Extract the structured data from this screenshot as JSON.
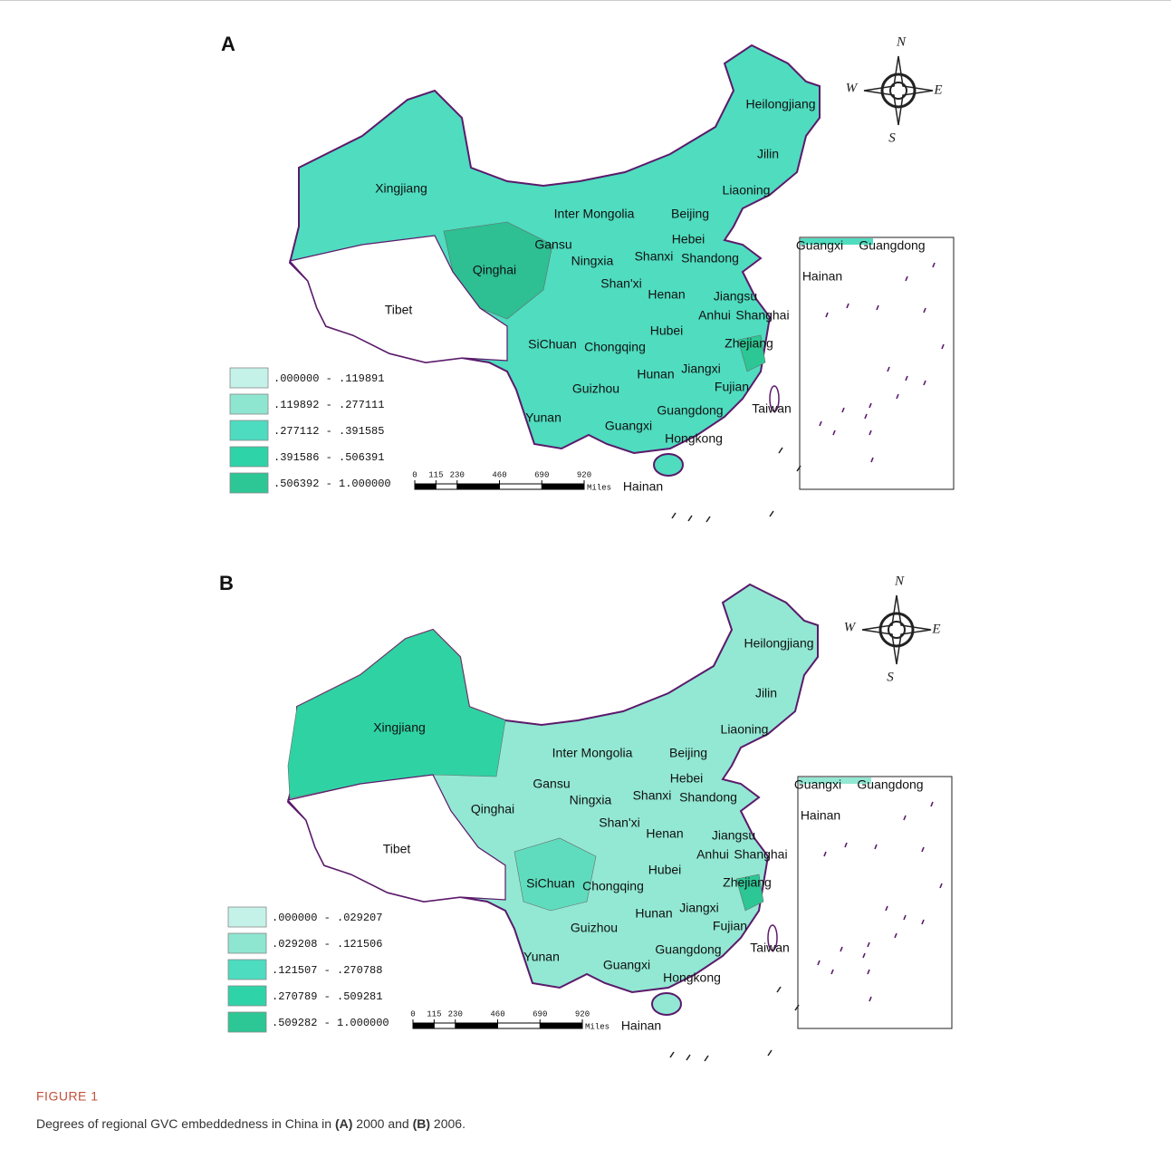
{
  "figure": {
    "label": "FIGURE 1",
    "caption": [
      {
        "text": "Degrees of regional GVC embeddedness in China in ",
        "bold": false
      },
      {
        "text": "(A)",
        "bold": true
      },
      {
        "text": " 2000 and ",
        "bold": false
      },
      {
        "text": "(B)",
        "bold": true
      },
      {
        "text": " 2006.",
        "bold": false
      }
    ]
  },
  "panels": [
    {
      "label": "A",
      "provinces": [
        "Heilongjiang",
        "Jilin",
        "Liaoning",
        "Xingjiang",
        "Inter Mongolia",
        "Beijing",
        "Hebei",
        "Gansu",
        "Ningxia",
        "Shanxi",
        "Shandong",
        "Qinghai",
        "Shan'xi",
        "Henan",
        "Jiangsu",
        "Tibet",
        "Anhui",
        "Shanghai",
        "Hubei",
        "SiChuan",
        "Chongqing",
        "Zhejiang",
        "Jiangxi",
        "Hunan",
        "Guizhou",
        "Fujian",
        "Yunan",
        "Guangdong",
        "Taiwan",
        "Guangxi",
        "Hongkong",
        "Hainan"
      ],
      "inset_labels": [
        "Guangxi",
        "Guangdong",
        "Hainan"
      ],
      "legend": [
        {
          "label": ".000000 - .119891",
          "color": "#c4f2e8"
        },
        {
          "label": ".119892 - .277111",
          "color": "#8ee6d0"
        },
        {
          "label": ".277112 - .391585",
          "color": "#4ddcc0"
        },
        {
          "label": ".391586 - .506391",
          "color": "#2fd3a8"
        },
        {
          "label": ".506392 - 1.000000",
          "color": "#2cc794"
        }
      ],
      "scale": {
        "ticks": [
          0,
          115,
          230,
          460,
          690,
          920
        ],
        "unit": "Miles"
      },
      "compass": {
        "north": "N",
        "south": "S",
        "east": "E",
        "west": "W"
      }
    },
    {
      "label": "B",
      "provinces": [
        "Heilongjiang",
        "Jilin",
        "Liaoning",
        "Xingjiang",
        "Inter Mongolia",
        "Beijing",
        "Hebei",
        "Gansu",
        "Ningxia",
        "Shanxi",
        "Shandong",
        "Qinghai",
        "Shan'xi",
        "Henan",
        "Jiangsu",
        "Tibet",
        "Anhui",
        "Shanghai",
        "Hubei",
        "SiChuan",
        "Chongqing",
        "Zhejiang",
        "Jiangxi",
        "Hunan",
        "Guizhou",
        "Fujian",
        "Yunan",
        "Guangdong",
        "Taiwan",
        "Guangxi",
        "Hongkong",
        "Hainan"
      ],
      "inset_labels": [
        "Guangxi",
        "Guangdong",
        "Hainan"
      ],
      "legend": [
        {
          "label": ".000000 - .029207",
          "color": "#c4f2e8"
        },
        {
          "label": ".029208 - .121506",
          "color": "#8ee6d0"
        },
        {
          "label": ".121507 - .270788",
          "color": "#4ddcc0"
        },
        {
          "label": ".270789 - .509281",
          "color": "#2fd3a8"
        },
        {
          "label": ".509282 - 1.000000",
          "color": "#2cc794"
        }
      ],
      "scale": {
        "ticks": [
          0,
          115,
          230,
          460,
          690,
          920
        ],
        "unit": "Miles"
      },
      "compass": {
        "north": "N",
        "south": "S",
        "east": "E",
        "west": "W"
      }
    }
  ]
}
